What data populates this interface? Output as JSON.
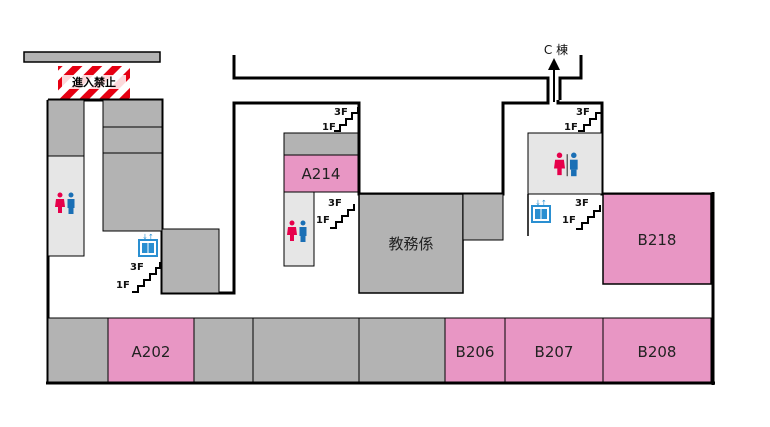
{
  "colors": {
    "wall": "#000000",
    "room_gray": "#b3b3b3",
    "room_pink": "#e896c4",
    "restroom_bg": "#e6e6e6",
    "female": "#e6004b",
    "male": "#1a6fb5",
    "elevator": "#2a8fd1",
    "stripe_red": "#e60012"
  },
  "rooms": {
    "a202": "A202",
    "a214": "A214",
    "b206": "B206",
    "b207": "B207",
    "b208": "B208",
    "b218": "B218",
    "kyomu": "教務係"
  },
  "stairs": {
    "upper": "3F",
    "lower": "1F"
  },
  "no_entry": "進入禁止",
  "direction": {
    "label": "C 棟"
  },
  "icons": {
    "restroom": "restroom-icon",
    "elevator": "elevator-icon",
    "stairs": "stairs-icon",
    "arrow": "arrow-up-icon"
  }
}
